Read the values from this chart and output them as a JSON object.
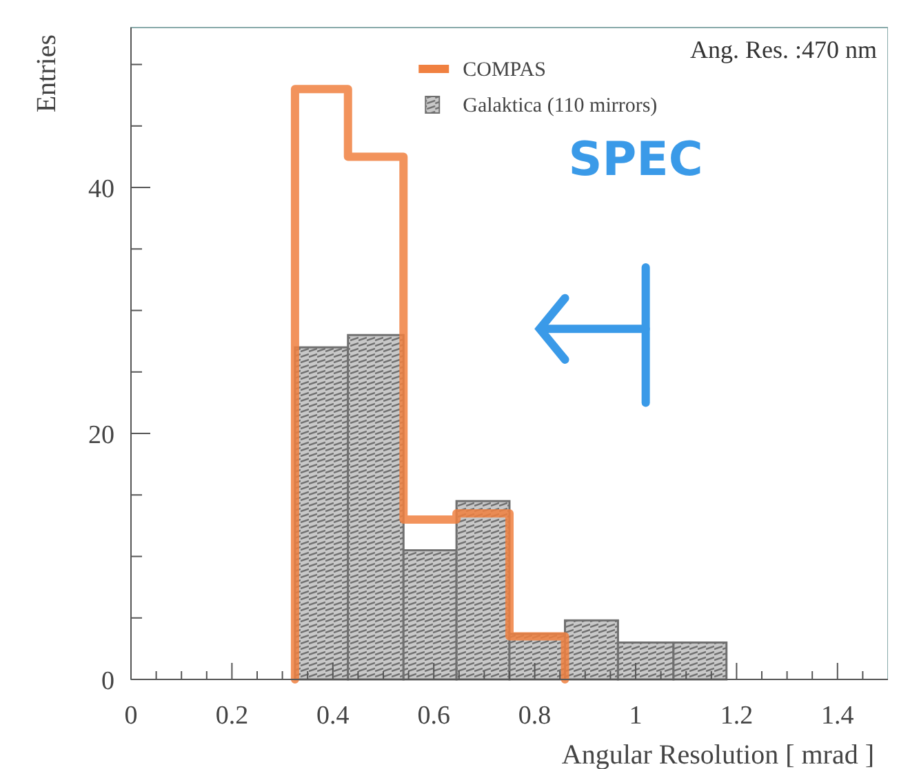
{
  "chart_data": {
    "type": "histogram",
    "title": "Ang. Res. :470 nm",
    "xlabel": "Angular Resolution [ mrad ]",
    "ylabel": "Entries",
    "bins": [
      0.325,
      0.43,
      0.54,
      0.645,
      0.75,
      0.86,
      0.965,
      1.075,
      1.18
    ],
    "series": [
      {
        "name": "COMPAS",
        "color": "#f08040",
        "bins": [
          0.325,
          0.43,
          0.54,
          0.645,
          0.75,
          0.86
        ],
        "values": [
          48,
          42.5,
          13,
          13.5,
          3.5
        ]
      },
      {
        "name": "Galaktica (110 mirrors)",
        "color": "#707070",
        "values": [
          27,
          28,
          10.5,
          14.5,
          3.7,
          4.8,
          3,
          3
        ]
      }
    ],
    "xlim": [
      0,
      1.5
    ],
    "ylim": [
      0,
      53
    ],
    "xticks": [
      0,
      {
        "value": 0.05,
        "label": null
      },
      {
        "value": 0.1,
        "label": null
      },
      {
        "value": 0.15,
        "label": null
      },
      0.2,
      {
        "value": 0.25,
        "label": null
      },
      {
        "value": 0.3,
        "label": null
      },
      {
        "value": 0.35,
        "label": null
      },
      0.4,
      {
        "value": 0.45,
        "label": null
      },
      {
        "value": 0.5,
        "label": null
      },
      {
        "value": 0.55,
        "label": null
      },
      0.6,
      {
        "value": 0.65,
        "label": null
      },
      {
        "value": 0.7,
        "label": null
      },
      {
        "value": 0.75,
        "label": null
      },
      0.8,
      {
        "value": 0.85,
        "label": null
      },
      {
        "value": 0.9,
        "label": null
      },
      {
        "value": 0.95,
        "label": null
      },
      1,
      {
        "value": 1.05,
        "label": null
      },
      {
        "value": 1.1,
        "label": null
      },
      {
        "value": 1.15,
        "label": null
      },
      1.2,
      {
        "value": 1.25,
        "label": null
      },
      {
        "value": 1.3,
        "label": null
      },
      {
        "value": 1.35,
        "label": null
      },
      1.4,
      {
        "value": 1.45,
        "label": null
      }
    ],
    "yticks": [
      0,
      {
        "value": 5,
        "label": null
      },
      {
        "value": 10,
        "label": null
      },
      {
        "value": 15,
        "label": null
      },
      20,
      {
        "value": 25,
        "label": null
      },
      {
        "value": 30,
        "label": null
      },
      {
        "value": 35,
        "label": null
      },
      40,
      {
        "value": 45,
        "label": null
      },
      {
        "value": 50,
        "label": null
      }
    ],
    "legend": "top right",
    "grid": false,
    "annotations": [
      "SPEC"
    ]
  }
}
